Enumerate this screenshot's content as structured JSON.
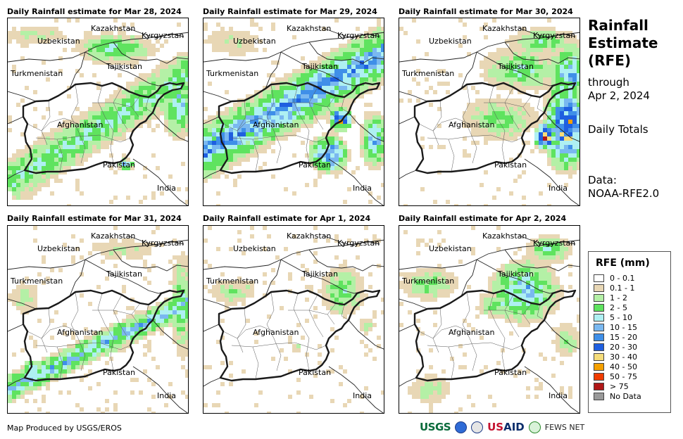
{
  "panels": [
    {
      "title": "Daily Rainfall estimate for Mar 28, 2024",
      "pattern": "mar28"
    },
    {
      "title": "Daily Rainfall estimate for Mar 29, 2024",
      "pattern": "mar29"
    },
    {
      "title": "Daily Rainfall estimate for Mar 30, 2024",
      "pattern": "mar30"
    },
    {
      "title": "Daily Rainfall estimate for Mar 31, 2024",
      "pattern": "mar31"
    },
    {
      "title": "Daily Rainfall estimate for Apr 1, 2024",
      "pattern": "apr1"
    },
    {
      "title": "Daily Rainfall estimate for Apr 2, 2024",
      "pattern": "apr2"
    }
  ],
  "map_labels": {
    "kazakhstan": "Kazakhstan",
    "uzbekistan": "Uzbekistan",
    "kyrgyzstan": "Kyrgyzstan",
    "tajikistan": "Tajikistan",
    "turkmenistan": "Turkmenistan",
    "afghanistan": "Afghanistan",
    "pakistan": "Pakistan",
    "india": "India"
  },
  "side": {
    "title_line1": "Rainfall",
    "title_line2": "Estimate",
    "title_line3": "(RFE)",
    "through": "through",
    "date": "Apr 2, 2024",
    "totals": "Daily Totals",
    "data_label": "Data:",
    "data_source": "NOAA-RFE2.0"
  },
  "legend": {
    "title": "RFE (mm)",
    "items": [
      {
        "label": "0 - 0.1",
        "color": "#ffffff"
      },
      {
        "label": "0.1 - 1",
        "color": "#e8d7b5"
      },
      {
        "label": "1 - 2",
        "color": "#b4f0a6"
      },
      {
        "label": "2 - 5",
        "color": "#5fe35f"
      },
      {
        "label": "5 - 10",
        "color": "#aef0f2"
      },
      {
        "label": "10 - 15",
        "color": "#7ab8f0"
      },
      {
        "label": "15 - 20",
        "color": "#3f8fe8"
      },
      {
        "label": "20 - 30",
        "color": "#1f5fe0"
      },
      {
        "label": "30 - 40",
        "color": "#f5dc7a"
      },
      {
        "label": "40 - 50",
        "color": "#f5a000"
      },
      {
        "label": "50 - 75",
        "color": "#f03c00"
      },
      {
        "label": "> 75",
        "color": "#b01818"
      },
      {
        "label": "No Data",
        "color": "#999999"
      }
    ]
  },
  "footer": {
    "credit": "Map Produced by USGS/EROS"
  },
  "logos": {
    "usgs": "USGS",
    "usaid_us": "US",
    "usaid_aid": "AID",
    "fews": "FEWS NET"
  }
}
